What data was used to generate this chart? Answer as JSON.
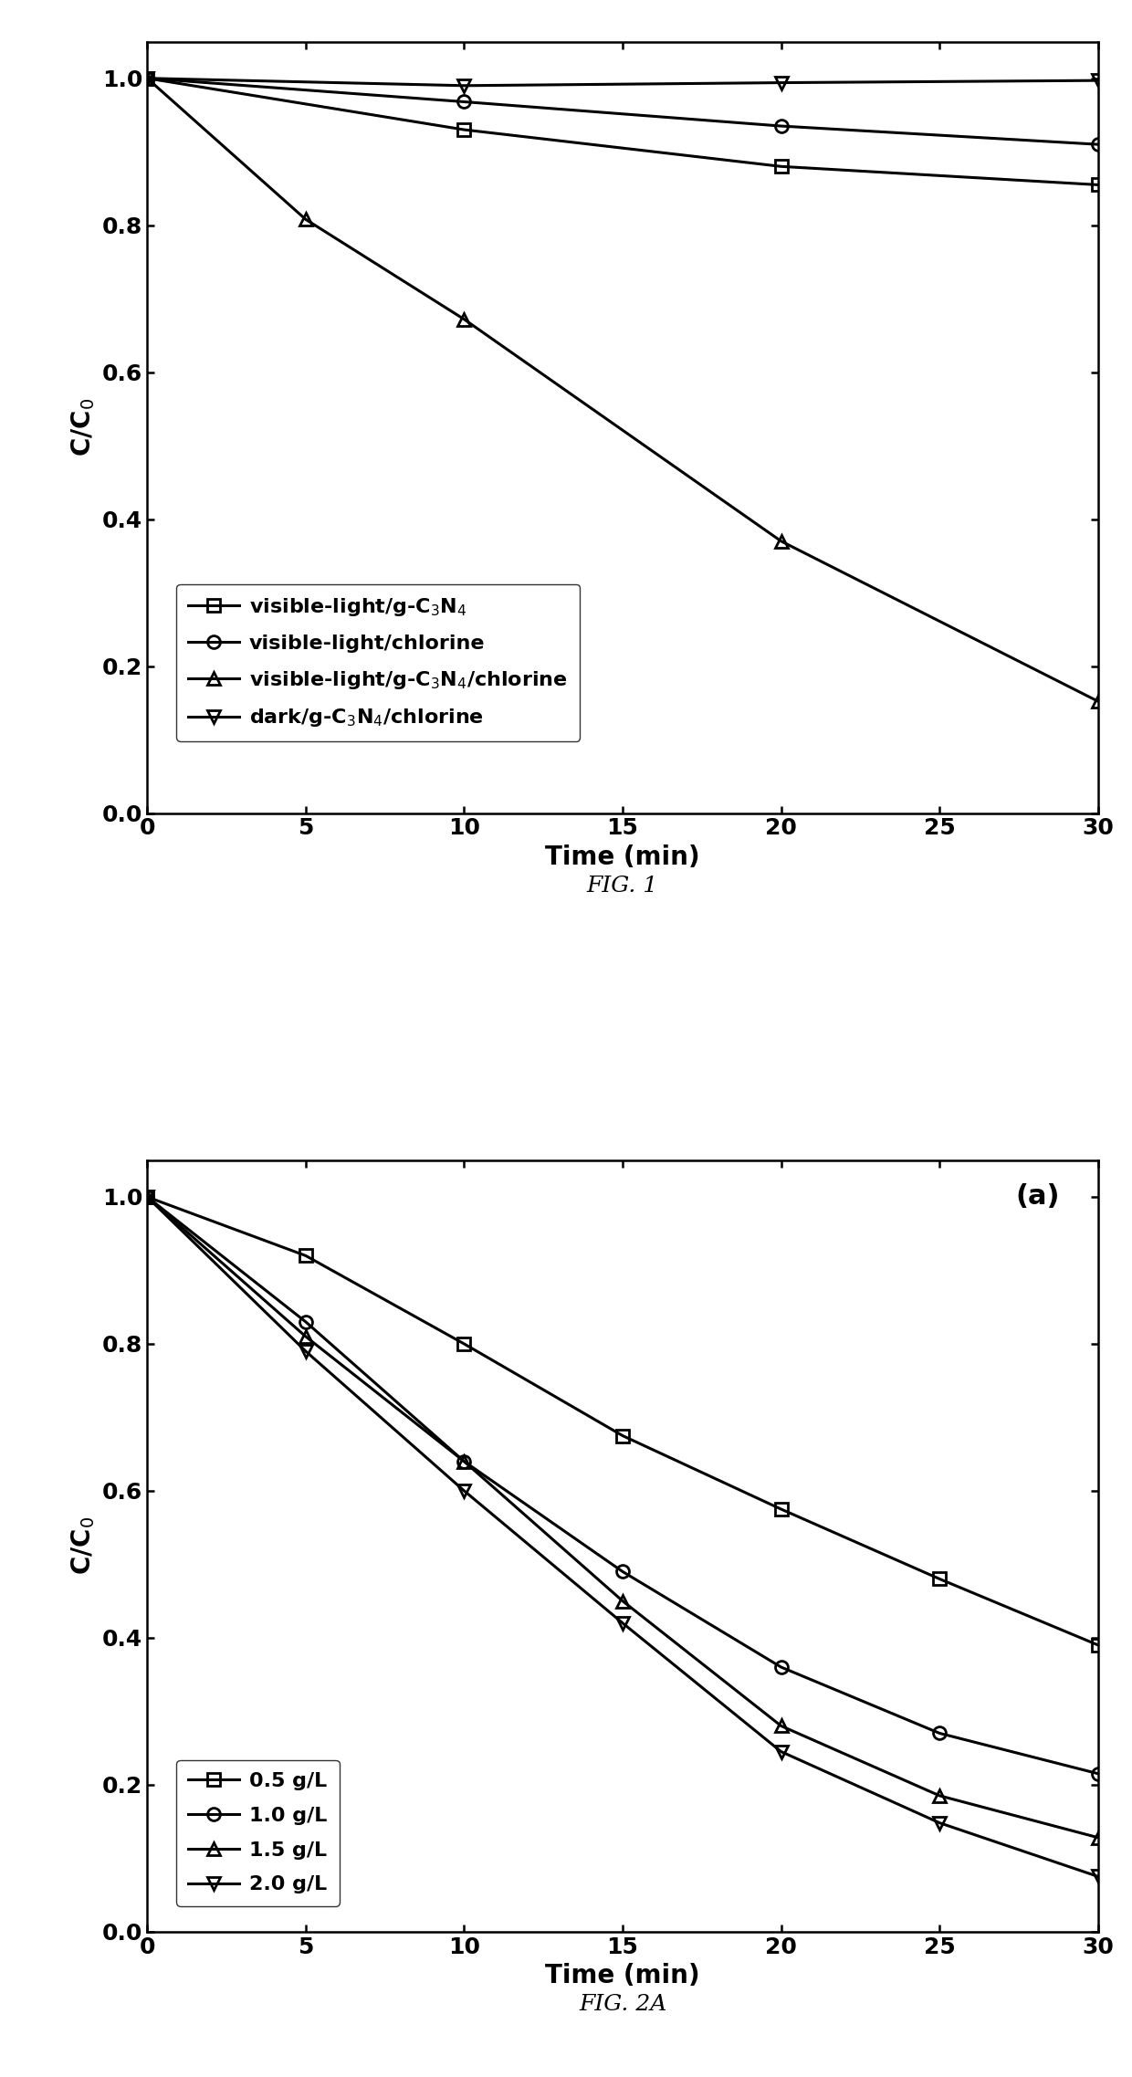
{
  "fig1": {
    "title": "FIG. 1",
    "xlabel": "Time (min)",
    "ylabel": "C/C$_0$",
    "xlim": [
      0,
      30
    ],
    "ylim": [
      0.0,
      1.05
    ],
    "yticks": [
      0.0,
      0.2,
      0.4,
      0.6,
      0.8,
      1.0
    ],
    "xticks": [
      0,
      5,
      10,
      15,
      20,
      25,
      30
    ],
    "series": [
      {
        "label": "visible-light/g-C$_3$N$_4$",
        "x": [
          0,
          10,
          20,
          30
        ],
        "y": [
          1.0,
          0.93,
          0.88,
          0.855
        ],
        "marker": "s",
        "markersize": 10,
        "linewidth": 2.2,
        "fillstyle": "none"
      },
      {
        "label": "visible-light/chlorine",
        "x": [
          0,
          10,
          20,
          30
        ],
        "y": [
          1.0,
          0.968,
          0.935,
          0.91
        ],
        "marker": "o",
        "markersize": 10,
        "linewidth": 2.2,
        "fillstyle": "none"
      },
      {
        "label": "visible-light/g-C$_3$N$_4$/chlorine",
        "x": [
          0,
          5,
          10,
          20,
          30
        ],
        "y": [
          1.0,
          0.808,
          0.672,
          0.37,
          0.152
        ],
        "marker": "^",
        "markersize": 10,
        "linewidth": 2.2,
        "fillstyle": "none"
      },
      {
        "label": "dark/g-C$_3$N$_4$/chlorine",
        "x": [
          0,
          10,
          20,
          30
        ],
        "y": [
          1.0,
          0.99,
          0.994,
          0.997
        ],
        "marker": "v",
        "markersize": 10,
        "linewidth": 2.2,
        "fillstyle": "none"
      }
    ]
  },
  "fig2a": {
    "title": "FIG. 2A",
    "panel_label": "(a)",
    "xlabel": "Time (min)",
    "ylabel": "C/C$_0$",
    "xlim": [
      0,
      30
    ],
    "ylim": [
      0.0,
      1.05
    ],
    "yticks": [
      0.0,
      0.2,
      0.4,
      0.6,
      0.8,
      1.0
    ],
    "xticks": [
      0,
      5,
      10,
      15,
      20,
      25,
      30
    ],
    "series": [
      {
        "label": "0.5 g/L",
        "x": [
          0,
          5,
          10,
          15,
          20,
          25,
          30
        ],
        "y": [
          1.0,
          0.92,
          0.8,
          0.675,
          0.575,
          0.48,
          0.39
        ],
        "marker": "s",
        "markersize": 10,
        "linewidth": 2.2,
        "fillstyle": "none"
      },
      {
        "label": "1.0 g/L",
        "x": [
          0,
          5,
          10,
          15,
          20,
          25,
          30
        ],
        "y": [
          1.0,
          0.83,
          0.64,
          0.49,
          0.36,
          0.27,
          0.215
        ],
        "marker": "o",
        "markersize": 10,
        "linewidth": 2.2,
        "fillstyle": "none"
      },
      {
        "label": "1.5 g/L",
        "x": [
          0,
          5,
          10,
          15,
          20,
          25,
          30
        ],
        "y": [
          1.0,
          0.81,
          0.64,
          0.45,
          0.28,
          0.185,
          0.128
        ],
        "marker": "^",
        "markersize": 10,
        "linewidth": 2.2,
        "fillstyle": "none"
      },
      {
        "label": "2.0 g/L",
        "x": [
          0,
          5,
          10,
          15,
          20,
          25,
          30
        ],
        "y": [
          1.0,
          0.79,
          0.6,
          0.42,
          0.245,
          0.148,
          0.075
        ],
        "marker": "v",
        "markersize": 10,
        "linewidth": 2.2,
        "fillstyle": "none"
      }
    ]
  },
  "background_color": "#ffffff",
  "tick_font_size": 18,
  "label_font_size": 20,
  "legend_font_size": 16,
  "title_font_size": 18
}
